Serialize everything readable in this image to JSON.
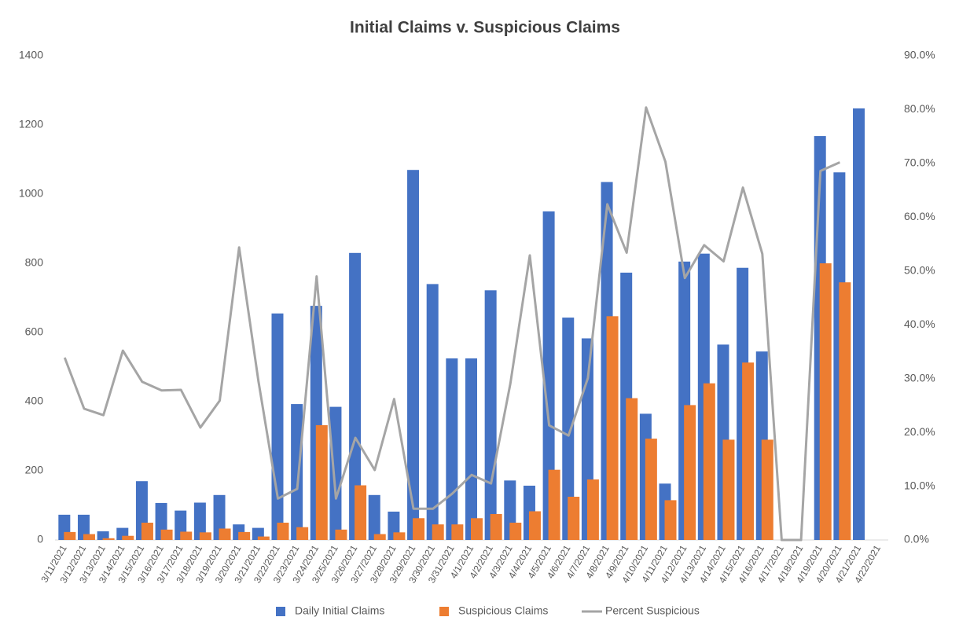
{
  "chart_data": {
    "type": "bar-line",
    "title": "Initial Claims v. Suspicious Claims",
    "categories": [
      "3/11/2021",
      "3/12/2021",
      "3/13/2021",
      "3/14/2021",
      "3/15/2021",
      "3/16/2021",
      "3/17/2021",
      "3/18/2021",
      "3/19/2021",
      "3/20/2021",
      "3/21/2021",
      "3/22/2021",
      "3/23/2021",
      "3/24/2021",
      "3/25/2021",
      "3/26/2021",
      "3/27/2021",
      "3/28/2021",
      "3/29/2021",
      "3/30/2021",
      "3/31/2021",
      "4/1/2021",
      "4/2/2021",
      "4/3/2021",
      "4/4/2021",
      "4/5/2021",
      "4/6/2021",
      "4/7/2021",
      "4/8/2021",
      "4/9/2021",
      "4/10/2021",
      "4/11/2021",
      "4/12/2021",
      "4/13/2021",
      "4/14/2021",
      "4/15/2021",
      "4/16/2021",
      "4/17/2021",
      "4/18/2021",
      "4/19/2021",
      "4/20/2021",
      "4/21/2021",
      "4/22/2021"
    ],
    "series": [
      {
        "name": "Daily Initial Claims",
        "type": "bar",
        "color": "#4472c4",
        "values": [
          73,
          73,
          25,
          35,
          170,
          107,
          85,
          108,
          130,
          45,
          35,
          655,
          393,
          677,
          385,
          830,
          130,
          82,
          1070,
          740,
          525,
          525,
          722,
          172,
          157,
          950,
          643,
          583,
          1035,
          773,
          365,
          163,
          805,
          828,
          565,
          787,
          545,
          0,
          0,
          1168,
          1063,
          1248,
          null
        ]
      },
      {
        "name": "Suspicious Claims",
        "type": "bar",
        "color": "#ed7d31",
        "values": [
          23,
          17,
          5,
          12,
          50,
          30,
          24,
          22,
          33,
          23,
          10,
          50,
          37,
          332,
          30,
          158,
          17,
          22,
          63,
          45,
          45,
          63,
          75,
          50,
          83,
          203,
          125,
          175,
          647,
          410,
          293,
          115,
          390,
          453,
          290,
          513,
          290,
          0,
          0,
          800,
          745,
          null,
          null
        ]
      },
      {
        "name": "Percent Suspicious",
        "type": "line",
        "axis": "y2",
        "color": "#a5a5a5",
        "values": [
          33.9,
          24.4,
          23.2,
          35.2,
          29.4,
          27.8,
          27.9,
          20.9,
          25.9,
          54.4,
          29.5,
          7.7,
          9.5,
          49,
          7.7,
          19,
          13,
          26.2,
          5.8,
          5.8,
          8.6,
          12.1,
          10.5,
          29.1,
          52.9,
          21.3,
          19.4,
          30.1,
          62.4,
          53.4,
          80.4,
          70.3,
          48.7,
          54.8,
          51.8,
          65.5,
          53.2,
          0,
          0,
          68.6,
          70.2,
          null,
          null
        ]
      }
    ],
    "ylim": [
      0,
      1400
    ],
    "yticks": [
      0,
      200,
      400,
      600,
      800,
      1000,
      1200,
      1400
    ],
    "y2lim": [
      0,
      90
    ],
    "y2ticks": [
      {
        "value": 0,
        "label": "0.0%"
      },
      {
        "value": 10,
        "label": "10.0%"
      },
      {
        "value": 20,
        "label": "20.0%"
      },
      {
        "value": 30,
        "label": "30.0%"
      },
      {
        "value": 40,
        "label": "40.0%"
      },
      {
        "value": 50,
        "label": "50.0%"
      },
      {
        "value": 60,
        "label": "60.0%"
      },
      {
        "value": 70,
        "label": "70.0%"
      },
      {
        "value": 80,
        "label": "80.0%"
      },
      {
        "value": 90,
        "label": "90.0%"
      }
    ],
    "grid": false,
    "legend": "bottom"
  }
}
